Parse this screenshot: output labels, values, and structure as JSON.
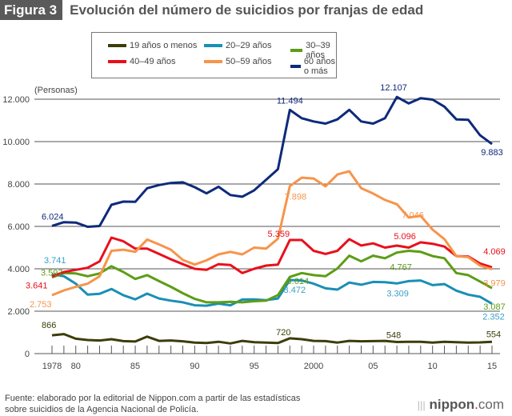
{
  "header": {
    "figure_label": "Figura 3",
    "title": "Evolución del número de suicidios por franjas de edad"
  },
  "footer": {
    "source_line1": "Fuente: elaborado por la editorial de Nippon.com a partir de las estadísticas",
    "source_line2": "sobre suicidios de la Agencia Nacional de Policía.",
    "brand_name": "nippon",
    "brand_dot": ".",
    "brand_tld": "com"
  },
  "chart_data": {
    "type": "line",
    "title": "Evolución del número de suicidios por franjas de edad",
    "ylabel": "(Personas)",
    "xlabel": "",
    "ylim": [
      0,
      12000
    ],
    "xlim": [
      1978,
      2015
    ],
    "grid": true,
    "legend_position": "top",
    "y_ticks": [
      {
        "value": 0,
        "label": "0"
      },
      {
        "value": 2000,
        "label": "2.000"
      },
      {
        "value": 4000,
        "label": "4.000"
      },
      {
        "value": 6000,
        "label": "6.000"
      },
      {
        "value": 8000,
        "label": "8.000"
      },
      {
        "value": 10000,
        "label": "10.000"
      },
      {
        "value": 12000,
        "label": "12.000"
      }
    ],
    "x_ticks": [
      {
        "value": 1978,
        "label": "1978"
      },
      {
        "value": 1980,
        "label": "80"
      },
      {
        "value": 1985,
        "label": "85"
      },
      {
        "value": 1990,
        "label": "90"
      },
      {
        "value": 1995,
        "label": "95"
      },
      {
        "value": 2000,
        "label": "2000"
      },
      {
        "value": 2005,
        "label": "05"
      },
      {
        "value": 2010,
        "label": "10"
      },
      {
        "value": 2015,
        "label": "15"
      }
    ],
    "x": [
      1978,
      1979,
      1980,
      1981,
      1982,
      1983,
      1984,
      1985,
      1986,
      1987,
      1988,
      1989,
      1990,
      1991,
      1992,
      1993,
      1994,
      1995,
      1996,
      1997,
      1998,
      1999,
      2000,
      2001,
      2002,
      2003,
      2004,
      2005,
      2006,
      2007,
      2008,
      2009,
      2010,
      2011,
      2012,
      2013,
      2014,
      2015
    ],
    "series": [
      {
        "name": "19 años o menos",
        "color": "#3d3d0a",
        "values": [
          866,
          920,
          700,
          640,
          620,
          680,
          590,
          570,
          800,
          600,
          620,
          580,
          520,
          500,
          560,
          480,
          600,
          540,
          520,
          500,
          720,
          680,
          600,
          590,
          520,
          600,
          580,
          590,
          600,
          548,
          560,
          560,
          520,
          560,
          540,
          520,
          530,
          554
        ]
      },
      {
        "name": "20–29 años",
        "color": "#1a8fb5",
        "values": [
          3741,
          3650,
          3300,
          2780,
          2820,
          3050,
          2750,
          2560,
          2830,
          2600,
          2500,
          2420,
          2280,
          2260,
          2360,
          2280,
          2550,
          2560,
          2520,
          2600,
          3472,
          3450,
          3300,
          3080,
          3020,
          3350,
          3250,
          3380,
          3370,
          3309,
          3420,
          3450,
          3230,
          3280,
          2970,
          2780,
          2680,
          2352
        ]
      },
      {
        "name": "30–39 años",
        "color": "#5d9d16",
        "values": [
          3597,
          3800,
          3780,
          3650,
          3780,
          4120,
          3850,
          3520,
          3700,
          3420,
          3150,
          2850,
          2580,
          2420,
          2420,
          2440,
          2420,
          2470,
          2500,
          2760,
          3614,
          3800,
          3700,
          3650,
          4020,
          4620,
          4350,
          4620,
          4500,
          4767,
          4850,
          4800,
          4600,
          4500,
          3800,
          3700,
          3400,
          3087
        ]
      },
      {
        "name": "40–49 años",
        "color": "#e8101c",
        "values": [
          3641,
          3850,
          3950,
          4050,
          4350,
          5470,
          5300,
          4950,
          4950,
          4700,
          4450,
          4220,
          4000,
          3950,
          4220,
          4180,
          3800,
          4000,
          4150,
          4200,
          5359,
          5359,
          4850,
          4700,
          4850,
          5400,
          5100,
          5200,
          5000,
          5096,
          5000,
          5250,
          5180,
          5050,
          4600,
          4580,
          4250,
          4069
        ]
      },
      {
        "name": "50–59 años",
        "color": "#f7944a",
        "values": [
          2753,
          2980,
          3150,
          3300,
          3650,
          4850,
          4900,
          4800,
          5380,
          5150,
          4900,
          4420,
          4200,
          4400,
          4680,
          4800,
          4680,
          5000,
          4950,
          5420,
          7898,
          8300,
          8260,
          7890,
          8450,
          8600,
          7800,
          7550,
          7250,
          7046,
          6420,
          6500,
          5850,
          5400,
          4600,
          4550,
          4150,
          3979
        ]
      },
      {
        "name": "60 años o más",
        "color": "#0e2a7a",
        "values": [
          6024,
          6200,
          6180,
          5980,
          6020,
          7020,
          7170,
          7160,
          7800,
          7950,
          8050,
          8080,
          7850,
          7560,
          7870,
          7480,
          7400,
          7700,
          8200,
          8700,
          11494,
          11100,
          10950,
          10850,
          11050,
          11500,
          10950,
          10850,
          11100,
          12107,
          11800,
          12050,
          11980,
          11650,
          11050,
          11030,
          10300,
          9883
        ]
      }
    ],
    "annotations": [
      {
        "series": "60 años o más",
        "x": 1978,
        "text": "6.024"
      },
      {
        "series": "60 años o más",
        "x": 1998,
        "text": "11.494"
      },
      {
        "series": "60 años o más",
        "x": 2007,
        "text": "12.107"
      },
      {
        "series": "60 años o más",
        "x": 2015,
        "text": "9.883"
      },
      {
        "series": "50–59 años",
        "x": 1978,
        "text": "2.753"
      },
      {
        "series": "50–59 años",
        "x": 1998,
        "text": "7.898"
      },
      {
        "series": "50–59 años",
        "x": 2007,
        "text": "7.046"
      },
      {
        "series": "50–59 años",
        "x": 2015,
        "text": "3.979"
      },
      {
        "series": "40–49 años",
        "x": 1978,
        "text": "3.641"
      },
      {
        "series": "40–49 años",
        "x": 1998,
        "text": "5.359"
      },
      {
        "series": "40–49 años",
        "x": 2007,
        "text": "5.096"
      },
      {
        "series": "40–49 años",
        "x": 2015,
        "text": "4.069"
      },
      {
        "series": "30–39 años",
        "x": 1978,
        "text": "3.597"
      },
      {
        "series": "30–39 años",
        "x": 1998,
        "text": "3.614"
      },
      {
        "series": "30–39 años",
        "x": 2007,
        "text": "4.767"
      },
      {
        "series": "30–39 años",
        "x": 2015,
        "text": "3.087"
      },
      {
        "series": "20–29 años",
        "x": 1978,
        "text": "3.741"
      },
      {
        "series": "20–29 años",
        "x": 1998,
        "text": "3.472"
      },
      {
        "series": "20–29 años",
        "x": 2007,
        "text": "3.309"
      },
      {
        "series": "20–29 años",
        "x": 2015,
        "text": "2.352"
      },
      {
        "series": "19 años o menos",
        "x": 1978,
        "text": "866"
      },
      {
        "series": "19 años o menos",
        "x": 1998,
        "text": "720"
      },
      {
        "series": "19 años o menos",
        "x": 2007,
        "text": "548"
      },
      {
        "series": "19 años o menos",
        "x": 2015,
        "text": "554"
      }
    ]
  }
}
